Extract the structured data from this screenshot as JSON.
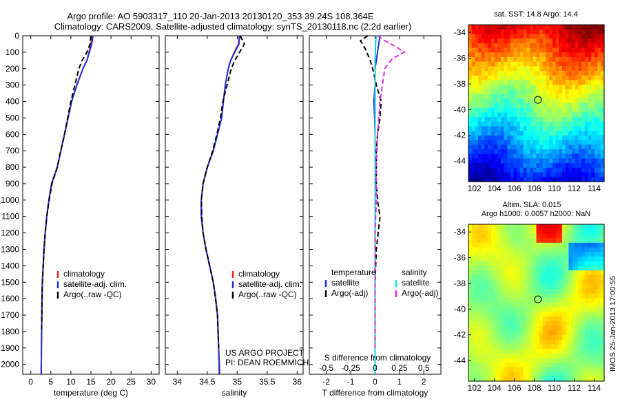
{
  "title": {
    "line1": "Argo profile: AO 5903317_110 20-Jan-2013 20130120_353 39.24S 108.364E",
    "line2": "Climatology: CARS2009. Satellite-adjusted climatology: synTS_20130118.nc (2.2d earlier)"
  },
  "colors": {
    "climatology": "#e8221b",
    "satellite": "#1a2fe6",
    "argo": "#000000",
    "sal_satellite": "#18e3f2",
    "sal_argo": "#e52ae0"
  },
  "chart_data": [
    {
      "type": "line",
      "id": "temperature",
      "xlabel": "temperature (deg C)",
      "ylim": [
        2060,
        0
      ],
      "xlim": [
        -2,
        32
      ],
      "xticks": [
        "0",
        "5",
        "10",
        "15",
        "20",
        "25",
        "30"
      ],
      "yticks": [
        "0",
        "100",
        "200",
        "300",
        "400",
        "500",
        "600",
        "700",
        "800",
        "900",
        "1000",
        "1100",
        "1200",
        "1300",
        "1400",
        "1500",
        "1600",
        "1700",
        "1800",
        "1900",
        "2000"
      ],
      "legend": [
        "climatology",
        "satellite-adj. clim.",
        "Argo(..raw -QC)"
      ],
      "series": [
        {
          "name": "climatology",
          "x": [
            15.3,
            15.0,
            14.5,
            14.0,
            13.0,
            11.5,
            10.2,
            9.3,
            8.4,
            7.5,
            6.6,
            5.2,
            4.5,
            4.0,
            3.6,
            3.3,
            3.1,
            2.9,
            2.8,
            2.7,
            2.6
          ],
          "y": [
            0,
            50,
            100,
            150,
            200,
            300,
            400,
            500,
            600,
            700,
            800,
            900,
            1000,
            1100,
            1200,
            1300,
            1400,
            1500,
            1600,
            1800,
            2060
          ]
        },
        {
          "name": "satellite-adj. clim.",
          "x": [
            15.5,
            15.2,
            14.6,
            14.0,
            13.0,
            11.5,
            10.2,
            9.3,
            8.4,
            7.5,
            6.6,
            5.2,
            4.5,
            4.0,
            3.6,
            3.3,
            3.1,
            2.9,
            2.8,
            2.7,
            2.6
          ],
          "y": [
            0,
            50,
            100,
            150,
            200,
            300,
            400,
            500,
            600,
            700,
            800,
            900,
            1000,
            1100,
            1200,
            1300,
            1400,
            1500,
            1600,
            1800,
            2060
          ]
        },
        {
          "name": "Argo(..raw -QC)",
          "x": [
            15.0,
            14.8,
            14.0,
            12.8,
            12.0,
            11.0,
            10.0,
            9.2,
            8.4,
            7.5,
            6.6,
            5.3,
            4.6,
            4.0,
            3.6,
            3.3,
            3.1,
            2.9,
            2.8,
            2.7
          ],
          "y": [
            0,
            50,
            100,
            150,
            200,
            300,
            400,
            500,
            600,
            700,
            800,
            900,
            1000,
            1100,
            1200,
            1300,
            1400,
            1500,
            1600,
            1800
          ]
        }
      ]
    },
    {
      "type": "line",
      "id": "salinity",
      "xlabel": "salinity",
      "ylim": [
        2060,
        0
      ],
      "xlim": [
        33.8,
        36.1
      ],
      "xticks": [
        "34",
        "34.5",
        "35",
        "35.5",
        "36"
      ],
      "legend": [
        "climatology",
        "satellite-adj. clim.",
        "Argo(..raw -QC)"
      ],
      "annotation": [
        "US ARGO PROJECT",
        "PI: DEAN ROEMMICH"
      ],
      "series": [
        {
          "name": "climatology",
          "x": [
            35.03,
            35.02,
            34.95,
            34.89,
            34.85,
            34.8,
            34.77,
            34.74,
            34.67,
            34.6,
            34.5,
            34.43,
            34.4,
            34.4,
            34.43,
            34.48,
            34.54,
            34.6,
            34.64,
            34.67,
            34.69,
            34.71
          ],
          "y": [
            0,
            50,
            100,
            150,
            200,
            300,
            400,
            500,
            600,
            700,
            800,
            900,
            1000,
            1100,
            1200,
            1300,
            1400,
            1500,
            1600,
            1700,
            1900,
            2060
          ]
        },
        {
          "name": "satellite-adj. clim.",
          "x": [
            35.04,
            35.03,
            34.96,
            34.89,
            34.85,
            34.8,
            34.77,
            34.74,
            34.67,
            34.6,
            34.5,
            34.43,
            34.4,
            34.4,
            34.43,
            34.48,
            34.54,
            34.6,
            34.64,
            34.67,
            34.69,
            34.7
          ],
          "y": [
            0,
            50,
            100,
            150,
            200,
            300,
            400,
            500,
            600,
            700,
            800,
            900,
            1000,
            1100,
            1200,
            1300,
            1400,
            1500,
            1600,
            1700,
            1900,
            2060
          ]
        },
        {
          "name": "Argo(..raw -QC)",
          "x": [
            35.05,
            35.12,
            35.04,
            34.96,
            34.9,
            34.83,
            34.76,
            34.72,
            34.66,
            34.59,
            34.5,
            34.43,
            34.4,
            34.41,
            34.43,
            34.48,
            34.54,
            34.6,
            34.64,
            34.67,
            34.69
          ],
          "y": [
            0,
            50,
            100,
            150,
            200,
            300,
            400,
            500,
            600,
            700,
            800,
            900,
            1000,
            1100,
            1200,
            1300,
            1400,
            1500,
            1600,
            1700,
            1900
          ]
        }
      ]
    },
    {
      "type": "line",
      "id": "difference",
      "xlabel": "T difference from climatology",
      "xlabel_top": "S difference from climatology",
      "ylim": [
        2060,
        0
      ],
      "xlim": [
        -2.7,
        2.7
      ],
      "xticks": [
        "-2",
        "-1",
        "0",
        "1",
        "2"
      ],
      "sticks": [
        "-0.5",
        "-0.25",
        "0",
        "0.25",
        "0.5"
      ],
      "legend_left_title": "temperature",
      "legend_right_title": "salinity",
      "legend_left": [
        "satellite",
        "Argo(-adj)"
      ],
      "legend_right": [
        "satellite",
        "Argo(-adj)"
      ],
      "series": [
        {
          "name": "temperature satellite",
          "x": [
            0.2,
            0.15,
            0.1,
            0.05,
            0,
            0,
            -0.05,
            -0.02,
            0,
            0,
            0,
            0,
            0,
            0,
            0,
            0,
            0,
            0,
            0
          ],
          "y": [
            0,
            50,
            100,
            150,
            200,
            300,
            400,
            500,
            600,
            700,
            800,
            900,
            1000,
            1200,
            1400,
            1600,
            1800,
            1900,
            2060
          ]
        },
        {
          "name": "temperature Argo(-adj)",
          "x": [
            -0.3,
            -0.6,
            -0.4,
            -0.2,
            -0.1,
            0.05,
            0.25,
            0.2,
            0.1,
            0.05,
            0.05,
            0.05,
            0.1,
            0.2,
            0.05,
            0,
            0,
            0,
            0
          ],
          "y": [
            0,
            30,
            80,
            150,
            200,
            300,
            400,
            500,
            600,
            700,
            800,
            900,
            1000,
            1100,
            1300,
            1500,
            1700,
            1800,
            1900
          ]
        },
        {
          "name": "salinity satellite",
          "x": [
            0.05,
            0.02,
            0.01,
            0,
            0,
            0,
            0,
            0,
            0,
            0,
            0,
            0,
            0,
            0,
            0
          ],
          "y": [
            0,
            50,
            100,
            150,
            200,
            300,
            400,
            600,
            800,
            1000,
            1200,
            1400,
            1600,
            1800,
            2060
          ]
        },
        {
          "name": "salinity Argo(-adj)",
          "x": [
            0.1,
            0.4,
            0.9,
            1.2,
            0.7,
            0.4,
            0.3,
            0.2,
            0.1,
            0.05,
            0.05,
            0,
            0,
            0,
            0
          ],
          "y": [
            0,
            30,
            70,
            100,
            140,
            200,
            300,
            400,
            600,
            800,
            1000,
            1200,
            1400,
            1600,
            1900
          ]
        }
      ]
    }
  ],
  "maps": {
    "sst": {
      "title": "sat. SST: 14.8 Argo: 14.4",
      "yticks": [
        "-34",
        "-36",
        "-38",
        "-40",
        "-42",
        "-44"
      ],
      "xticks": [
        "102",
        "104",
        "106",
        "108",
        "110",
        "112",
        "114"
      ]
    },
    "sla": {
      "title_line1": "Altim. SLA: 0.015",
      "title_line2": "Argo h1000: 0.0057 h2000: NaN",
      "yticks": [
        "-34",
        "-36",
        "-38",
        "-40",
        "-42",
        "-44"
      ],
      "xticks": [
        "102",
        "104",
        "106",
        "108",
        "110",
        "112",
        "114"
      ]
    },
    "marker": {
      "lon": 108.364,
      "lat": -39.24
    }
  },
  "footer": "IMOS 25-Jan-2013 17:00:55"
}
